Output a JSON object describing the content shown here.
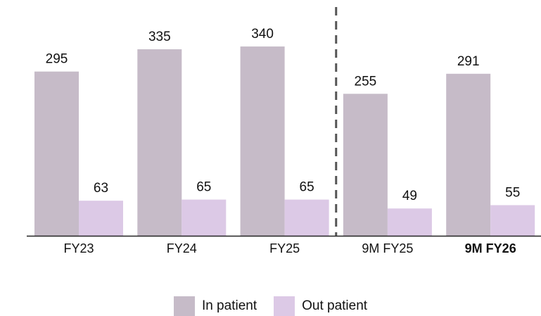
{
  "chart_data": {
    "type": "bar",
    "categories": [
      "FY23",
      "FY24",
      "FY25",
      "9M FY25",
      "9M FY26"
    ],
    "bold_categories": [
      "9M FY26"
    ],
    "series": [
      {
        "name": "In patient",
        "values": [
          295,
          335,
          340,
          255,
          291
        ],
        "color": "#c6bbc8"
      },
      {
        "name": "Out patient",
        "values": [
          63,
          65,
          65,
          49,
          55
        ],
        "color": "#dcc9e6"
      }
    ],
    "ylim": [
      0,
      400
    ],
    "title": "",
    "xlabel": "",
    "ylabel": "",
    "grid": false,
    "legend_position": "bottom",
    "separator": {
      "after_category_index": 2,
      "style": "dashed",
      "color": "#555555"
    }
  }
}
